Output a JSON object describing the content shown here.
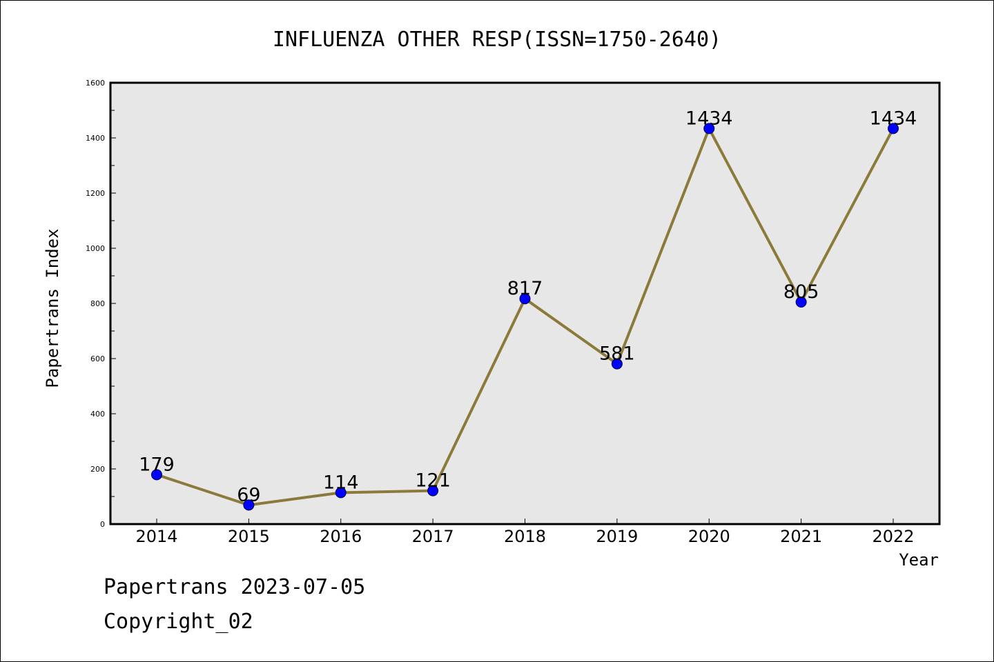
{
  "chart_data": {
    "type": "line",
    "title": "INFLUENZA OTHER RESP(ISSN=1750-2640)",
    "xlabel": "Year",
    "ylabel": "Papertrans Index",
    "categories": [
      "2014",
      "2015",
      "2016",
      "2017",
      "2018",
      "2019",
      "2020",
      "2021",
      "2022"
    ],
    "values": [
      179,
      69,
      114,
      121,
      817,
      581,
      1434,
      805,
      1434
    ],
    "ylim": [
      0,
      1600
    ],
    "yticks": [
      0,
      200,
      400,
      600,
      800,
      1000,
      1200,
      1400,
      1600
    ],
    "grid": false,
    "data_labels": true,
    "colors": {
      "line": "#8b7a3a",
      "marker": "#0000ff",
      "plot_bg": "#e7e7e7"
    }
  },
  "footer": {
    "line1": "Papertrans 2023-07-05",
    "line2": "Copyright_02"
  }
}
